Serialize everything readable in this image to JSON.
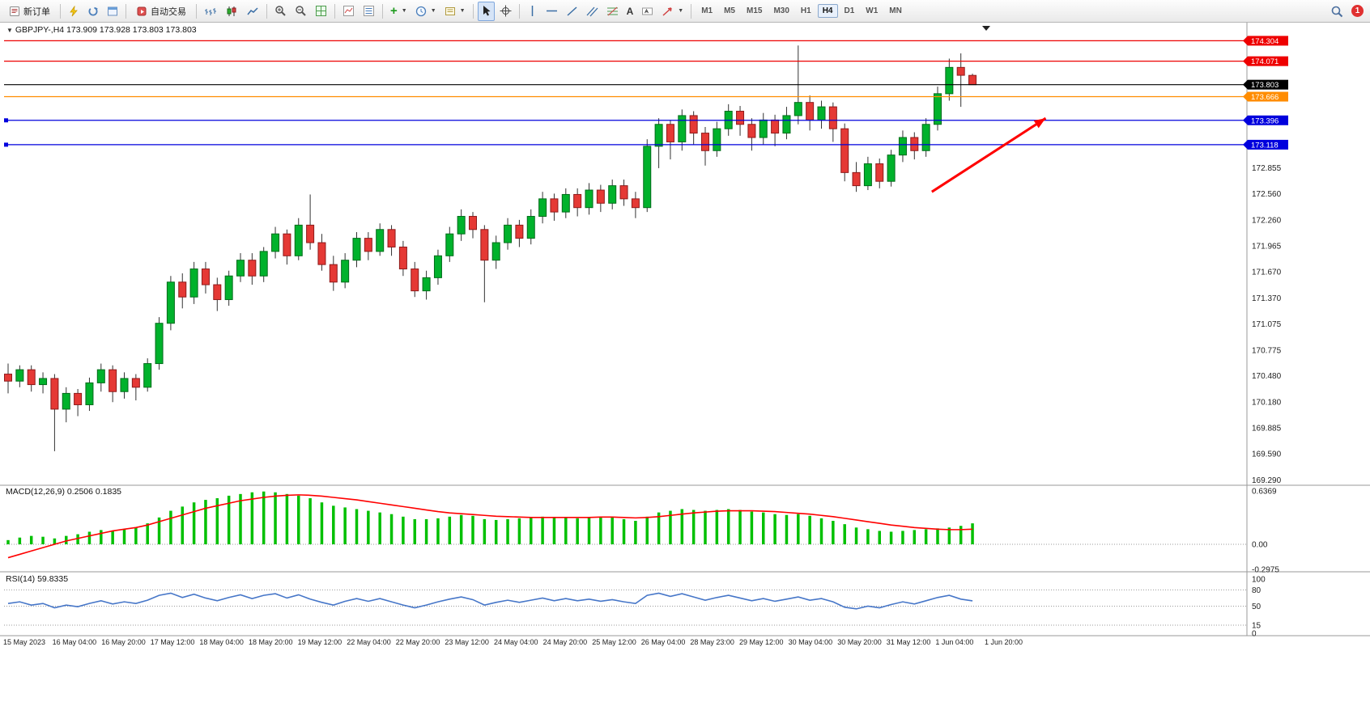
{
  "toolbar": {
    "new_order": "新订单",
    "autotrading": "自动交易",
    "timeframes": [
      "M1",
      "M5",
      "M15",
      "M30",
      "H1",
      "H4",
      "D1",
      "W1",
      "MN"
    ],
    "active_timeframe": "H4",
    "notification_count": "1"
  },
  "chart": {
    "title": "GBPJPY-,H4 173.909 173.928 173.803 173.803",
    "symbol": "GBPJPY-",
    "period": "H4",
    "ohlc": {
      "open": "173.909",
      "high": "173.928",
      "low": "173.803",
      "close": "173.803"
    }
  },
  "chart_data": {
    "type": "candlestick",
    "symbol": "GBPJPY-",
    "timeframe": "H4",
    "colors": {
      "bull": "#00B22C",
      "bull_border": "#006B1A",
      "bear": "#E53935",
      "bear_border": "#8E1B1B",
      "wick": "#333333",
      "macd_hist": "#00C000",
      "macd_signal": "#FF0000",
      "rsi_line": "#4676C8"
    },
    "price_axis": {
      "min": 169.25,
      "max": 174.4,
      "labels": [
        "172.855",
        "172.560",
        "172.260",
        "171.965",
        "171.670",
        "171.370",
        "171.075",
        "170.775",
        "170.480",
        "170.180",
        "169.885",
        "169.590",
        "169.290"
      ]
    },
    "hlines": [
      {
        "price": 174.304,
        "label": "174.304",
        "color": "#EE0000",
        "handle": false
      },
      {
        "price": 174.071,
        "label": "174.071",
        "color": "#EE0000",
        "handle": false
      },
      {
        "price": 173.803,
        "label": "173.803",
        "color": "#000000",
        "handle": false
      },
      {
        "price": 173.666,
        "label": "173.666",
        "color": "#FF8C00",
        "handle": false
      },
      {
        "price": 173.396,
        "label": "173.396",
        "color": "#0000DD",
        "handle": true
      },
      {
        "price": 173.118,
        "label": "173.118",
        "color": "#0000DD",
        "handle": true
      }
    ],
    "arrow": {
      "from_bar": 79.5,
      "from_price": 172.58,
      "to_bar": 89.3,
      "to_price": 173.42,
      "color": "#FF0000"
    },
    "candles": [
      [
        170.5,
        170.62,
        170.28,
        170.42
      ],
      [
        170.42,
        170.6,
        170.35,
        170.55
      ],
      [
        170.55,
        170.6,
        170.3,
        170.38
      ],
      [
        170.38,
        170.52,
        170.28,
        170.45
      ],
      [
        170.45,
        170.5,
        169.62,
        170.1
      ],
      [
        170.1,
        170.35,
        169.95,
        170.28
      ],
      [
        170.28,
        170.33,
        170.02,
        170.15
      ],
      [
        170.15,
        170.46,
        170.08,
        170.4
      ],
      [
        170.4,
        170.62,
        170.3,
        170.55
      ],
      [
        170.55,
        170.6,
        170.18,
        170.3
      ],
      [
        170.3,
        170.52,
        170.22,
        170.45
      ],
      [
        170.45,
        170.5,
        170.2,
        170.35
      ],
      [
        170.35,
        170.68,
        170.3,
        170.62
      ],
      [
        170.62,
        171.15,
        170.55,
        171.08
      ],
      [
        171.08,
        171.62,
        171.0,
        171.55
      ],
      [
        171.55,
        171.65,
        171.25,
        171.38
      ],
      [
        171.38,
        171.78,
        171.3,
        171.7
      ],
      [
        171.7,
        171.78,
        171.42,
        171.52
      ],
      [
        171.52,
        171.6,
        171.22,
        171.35
      ],
      [
        171.35,
        171.68,
        171.28,
        171.62
      ],
      [
        171.62,
        171.88,
        171.55,
        171.8
      ],
      [
        171.8,
        171.88,
        171.52,
        171.62
      ],
      [
        171.62,
        171.95,
        171.55,
        171.9
      ],
      [
        171.9,
        172.18,
        171.82,
        172.1
      ],
      [
        172.1,
        172.15,
        171.75,
        171.85
      ],
      [
        171.85,
        172.28,
        171.8,
        172.2
      ],
      [
        172.2,
        172.55,
        171.92,
        172.0
      ],
      [
        172.0,
        172.1,
        171.68,
        171.75
      ],
      [
        171.75,
        171.85,
        171.45,
        171.55
      ],
      [
        171.55,
        171.88,
        171.48,
        171.8
      ],
      [
        171.8,
        172.12,
        171.72,
        172.05
      ],
      [
        172.05,
        172.12,
        171.8,
        171.9
      ],
      [
        171.9,
        172.22,
        171.85,
        172.15
      ],
      [
        172.15,
        172.2,
        171.85,
        171.95
      ],
      [
        171.95,
        172.02,
        171.62,
        171.7
      ],
      [
        171.7,
        171.78,
        171.38,
        171.45
      ],
      [
        171.45,
        171.68,
        171.35,
        171.6
      ],
      [
        171.6,
        171.92,
        171.52,
        171.85
      ],
      [
        171.85,
        172.18,
        171.78,
        172.1
      ],
      [
        172.1,
        172.38,
        172.02,
        172.3
      ],
      [
        172.3,
        172.35,
        172.05,
        172.15
      ],
      [
        172.15,
        172.2,
        171.32,
        171.8
      ],
      [
        171.8,
        172.08,
        171.7,
        172.0
      ],
      [
        172.0,
        172.28,
        171.92,
        172.2
      ],
      [
        172.2,
        172.26,
        171.95,
        172.05
      ],
      [
        172.05,
        172.38,
        171.98,
        172.3
      ],
      [
        172.3,
        172.58,
        172.22,
        172.5
      ],
      [
        172.5,
        172.56,
        172.25,
        172.35
      ],
      [
        172.35,
        172.62,
        172.28,
        172.55
      ],
      [
        172.55,
        172.62,
        172.3,
        172.4
      ],
      [
        172.4,
        172.68,
        172.32,
        172.6
      ],
      [
        172.6,
        172.66,
        172.35,
        172.45
      ],
      [
        172.45,
        172.72,
        172.38,
        172.65
      ],
      [
        172.65,
        172.72,
        172.42,
        172.5
      ],
      [
        172.5,
        172.58,
        172.28,
        172.4
      ],
      [
        172.4,
        173.18,
        172.35,
        173.1
      ],
      [
        173.1,
        173.42,
        172.85,
        173.35
      ],
      [
        173.35,
        173.4,
        172.95,
        173.15
      ],
      [
        173.15,
        173.52,
        173.05,
        173.45
      ],
      [
        173.45,
        173.5,
        173.12,
        173.25
      ],
      [
        173.25,
        173.32,
        172.88,
        173.05
      ],
      [
        173.05,
        173.38,
        172.98,
        173.3
      ],
      [
        173.3,
        173.58,
        173.22,
        173.5
      ],
      [
        173.5,
        173.56,
        173.22,
        173.35
      ],
      [
        173.35,
        173.42,
        173.05,
        173.2
      ],
      [
        173.2,
        173.48,
        173.12,
        173.4
      ],
      [
        173.4,
        173.46,
        173.1,
        173.25
      ],
      [
        173.25,
        173.55,
        173.18,
        173.45
      ],
      [
        173.45,
        174.25,
        173.35,
        173.6
      ],
      [
        173.6,
        173.68,
        173.28,
        173.4
      ],
      [
        173.4,
        173.62,
        173.3,
        173.55
      ],
      [
        173.55,
        173.6,
        173.15,
        173.3
      ],
      [
        173.3,
        173.36,
        172.7,
        172.8
      ],
      [
        172.8,
        172.92,
        172.58,
        172.65
      ],
      [
        172.65,
        172.98,
        172.6,
        172.9
      ],
      [
        172.9,
        172.96,
        172.62,
        172.7
      ],
      [
        172.7,
        173.06,
        172.64,
        173.0
      ],
      [
        173.0,
        173.28,
        172.92,
        173.2
      ],
      [
        173.2,
        173.26,
        172.95,
        173.05
      ],
      [
        173.05,
        173.42,
        172.98,
        173.35
      ],
      [
        173.35,
        173.78,
        173.28,
        173.7
      ],
      [
        173.7,
        174.1,
        173.62,
        174.0
      ],
      [
        174.0,
        174.16,
        173.55,
        173.91
      ],
      [
        173.909,
        173.928,
        173.803,
        173.803
      ]
    ],
    "macd": {
      "label": "MACD(12,26,9) 0.2506 0.1835",
      "axis": [
        {
          "v": 0.6369,
          "t": "0.6369"
        },
        {
          "v": 0.0,
          "t": "0.00"
        },
        {
          "v": -0.2975,
          "t": "-0.2975"
        }
      ],
      "hist": [
        0.05,
        0.08,
        0.1,
        0.09,
        0.07,
        0.1,
        0.12,
        0.15,
        0.17,
        0.16,
        0.18,
        0.2,
        0.25,
        0.32,
        0.4,
        0.45,
        0.5,
        0.53,
        0.55,
        0.58,
        0.6,
        0.62,
        0.63,
        0.62,
        0.6,
        0.58,
        0.55,
        0.5,
        0.46,
        0.44,
        0.42,
        0.4,
        0.38,
        0.36,
        0.33,
        0.3,
        0.3,
        0.31,
        0.33,
        0.35,
        0.34,
        0.3,
        0.29,
        0.3,
        0.31,
        0.32,
        0.33,
        0.32,
        0.32,
        0.31,
        0.32,
        0.33,
        0.32,
        0.3,
        0.28,
        0.33,
        0.38,
        0.4,
        0.42,
        0.41,
        0.4,
        0.41,
        0.42,
        0.41,
        0.39,
        0.38,
        0.36,
        0.35,
        0.36,
        0.34,
        0.31,
        0.28,
        0.24,
        0.2,
        0.18,
        0.16,
        0.15,
        0.16,
        0.17,
        0.18,
        0.19,
        0.2,
        0.22,
        0.25
      ],
      "signal": [
        -0.16,
        -0.12,
        -0.08,
        -0.04,
        0.0,
        0.04,
        0.07,
        0.1,
        0.13,
        0.16,
        0.18,
        0.2,
        0.23,
        0.27,
        0.31,
        0.35,
        0.39,
        0.43,
        0.46,
        0.49,
        0.52,
        0.54,
        0.56,
        0.575,
        0.585,
        0.59,
        0.585,
        0.575,
        0.56,
        0.545,
        0.53,
        0.51,
        0.49,
        0.47,
        0.45,
        0.43,
        0.41,
        0.39,
        0.375,
        0.365,
        0.355,
        0.345,
        0.335,
        0.33,
        0.325,
        0.32,
        0.32,
        0.32,
        0.32,
        0.32,
        0.32,
        0.325,
        0.325,
        0.32,
        0.315,
        0.32,
        0.33,
        0.345,
        0.36,
        0.375,
        0.385,
        0.395,
        0.4,
        0.4,
        0.4,
        0.395,
        0.39,
        0.38,
        0.37,
        0.36,
        0.345,
        0.33,
        0.31,
        0.29,
        0.27,
        0.25,
        0.23,
        0.215,
        0.2,
        0.19,
        0.18,
        0.175,
        0.175,
        0.18
      ]
    },
    "rsi": {
      "label": "RSI(14) 59.8335",
      "levels": [
        {
          "v": 100,
          "t": "100"
        },
        {
          "v": 80,
          "t": "80"
        },
        {
          "v": 50,
          "t": "50"
        },
        {
          "v": 15,
          "t": "15"
        },
        {
          "v": 0,
          "t": "0"
        }
      ],
      "dotted_levels": [
        80,
        50,
        15
      ],
      "values": [
        55,
        58,
        52,
        55,
        47,
        52,
        49,
        55,
        60,
        54,
        58,
        55,
        61,
        70,
        74,
        66,
        72,
        65,
        60,
        66,
        71,
        64,
        70,
        73,
        65,
        71,
        63,
        57,
        52,
        59,
        64,
        59,
        64,
        58,
        52,
        47,
        52,
        58,
        63,
        67,
        62,
        52,
        57,
        61,
        57,
        61,
        65,
        60,
        64,
        60,
        63,
        59,
        62,
        58,
        55,
        70,
        74,
        68,
        73,
        67,
        61,
        66,
        70,
        65,
        60,
        64,
        59,
        63,
        67,
        61,
        64,
        58,
        48,
        45,
        50,
        47,
        53,
        58,
        54,
        60,
        66,
        70,
        63,
        59.8
      ]
    },
    "time_axis": [
      "15 May 2023",
      "16 May 04:00",
      "16 May 20:00",
      "17 May 12:00",
      "18 May 04:00",
      "18 May 20:00",
      "19 May 12:00",
      "22 May 04:00",
      "22 May 20:00",
      "23 May 12:00",
      "24 May 04:00",
      "24 May 20:00",
      "25 May 12:00",
      "26 May 04:00",
      "28 May 23:00",
      "29 May 12:00",
      "30 May 04:00",
      "30 May 20:00",
      "31 May 12:00",
      "1 Jun 04:00",
      "1 Jun 20:00"
    ]
  }
}
